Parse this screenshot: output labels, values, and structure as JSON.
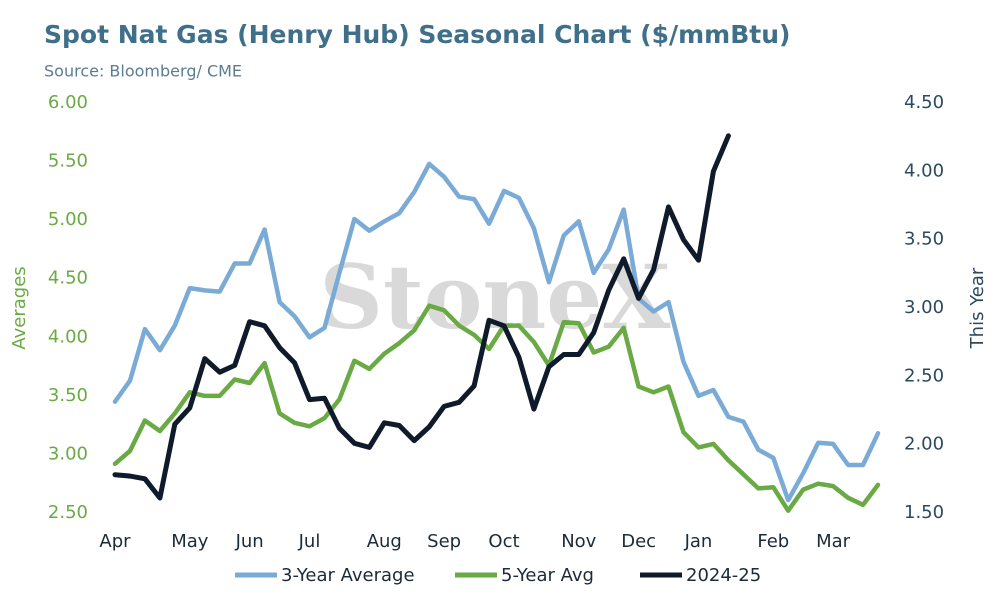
{
  "chart_data": {
    "type": "line",
    "title": "Spot Nat Gas (Henry Hub) Seasonal Chart ($/mmBtu)",
    "subtitle": "Source: Bloomberg/ CME",
    "watermark": "StoneX",
    "y_label": "Averages",
    "y2_label": "This Year",
    "categories": [
      "Apr",
      null,
      null,
      null,
      null,
      "May",
      null,
      null,
      null,
      "Jun",
      null,
      null,
      null,
      "Jul",
      null,
      null,
      null,
      null,
      "Aug",
      null,
      null,
      null,
      "Sep",
      null,
      null,
      null,
      "Oct",
      null,
      null,
      null,
      null,
      "Nov",
      null,
      null,
      null,
      "Dec",
      null,
      null,
      null,
      "Jan",
      null,
      null,
      null,
      null,
      "Feb",
      null,
      null,
      null,
      "Mar",
      null,
      null,
      null
    ],
    "ylim": [
      2.5,
      6.0
    ],
    "yticks": [
      {
        "value": 2.5,
        "label": "2.50"
      },
      {
        "value": 3.0,
        "label": "3.00"
      },
      {
        "value": 3.5,
        "label": "3.50"
      },
      {
        "value": 4.0,
        "label": "4.00"
      },
      {
        "value": 4.5,
        "label": "4.50"
      },
      {
        "value": 5.0,
        "label": "5.00"
      },
      {
        "value": 5.5,
        "label": "5.50"
      },
      {
        "value": 6.0,
        "label": "6.00"
      }
    ],
    "y2lim": [
      1.5,
      4.5
    ],
    "y2ticks": [
      {
        "value": 1.5,
        "label": "1.50"
      },
      {
        "value": 2.0,
        "label": "2.00"
      },
      {
        "value": 2.5,
        "label": "2.50"
      },
      {
        "value": 3.0,
        "label": "3.00"
      },
      {
        "value": 3.5,
        "label": "3.50"
      },
      {
        "value": 4.0,
        "label": "4.00"
      },
      {
        "value": 4.5,
        "label": "4.50"
      }
    ],
    "legend": "bottom",
    "series": [
      {
        "name": "3-Year Average",
        "color": "#7aaad6",
        "values": [
          3.45,
          3.63,
          4.07,
          3.89,
          4.1,
          4.42,
          4.4,
          4.39,
          4.63,
          4.63,
          4.92,
          4.3,
          4.18,
          4.0,
          4.08,
          4.55,
          5.01,
          4.91,
          4.99,
          5.06,
          5.24,
          5.48,
          5.37,
          5.2,
          5.18,
          4.97,
          5.25,
          5.19,
          4.93,
          4.47,
          4.87,
          4.99,
          4.55,
          4.75,
          5.09,
          4.33,
          4.22,
          4.3,
          3.79,
          3.5,
          3.55,
          3.32,
          3.28,
          3.04,
          2.97,
          2.61,
          2.84,
          3.1,
          3.09,
          2.91,
          2.91,
          3.18
        ]
      },
      {
        "name": "5-Year Avg",
        "color": "#6aaa45",
        "values": [
          2.92,
          3.03,
          3.29,
          3.2,
          3.35,
          3.53,
          3.5,
          3.5,
          3.64,
          3.61,
          3.78,
          3.35,
          3.27,
          3.24,
          3.31,
          3.47,
          3.8,
          3.73,
          3.86,
          3.95,
          4.06,
          4.27,
          4.23,
          4.1,
          4.02,
          3.9,
          4.1,
          4.1,
          3.96,
          3.76,
          4.13,
          4.12,
          3.87,
          3.92,
          4.08,
          3.58,
          3.53,
          3.58,
          3.19,
          3.06,
          3.09,
          2.95,
          2.83,
          2.71,
          2.72,
          2.52,
          2.7,
          2.75,
          2.73,
          2.63,
          2.57,
          2.74
        ]
      },
      {
        "name": "2024-25",
        "color": "#0f1a2b",
        "axis": "y2",
        "values": [
          1.78,
          1.77,
          1.75,
          1.61,
          2.15,
          2.27,
          2.63,
          2.53,
          2.58,
          2.9,
          2.87,
          2.71,
          2.6,
          2.33,
          2.34,
          2.12,
          2.01,
          1.98,
          2.16,
          2.14,
          2.03,
          2.13,
          2.28,
          2.31,
          2.43,
          2.91,
          2.87,
          2.64,
          2.26,
          2.57,
          2.66,
          2.66,
          2.82,
          3.13,
          3.36,
          3.07,
          3.28,
          3.74,
          3.5,
          3.35,
          4.0,
          4.26,
          null,
          null,
          null,
          null,
          null,
          null,
          null,
          null,
          null,
          null
        ]
      }
    ]
  }
}
